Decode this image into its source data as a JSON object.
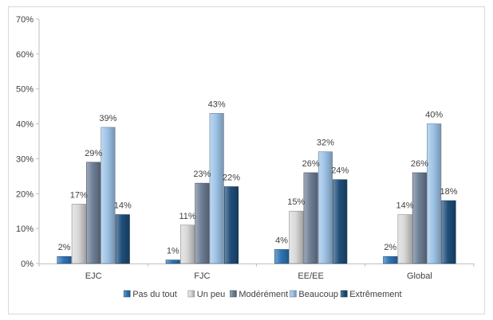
{
  "chart_data": {
    "type": "bar",
    "categories": [
      "EJC",
      "FJC",
      "EE/EE",
      "Global"
    ],
    "series": [
      {
        "name": "Pas du tout",
        "values": [
          2,
          1,
          4,
          2
        ],
        "labels": [
          "2%",
          "1%",
          "4%",
          "2%"
        ],
        "color": "#2e75b6"
      },
      {
        "name": "Un peu",
        "values": [
          17,
          11,
          15,
          14
        ],
        "labels": [
          "17%",
          "11%",
          "15%",
          "14%"
        ],
        "color": "#d9d9d9"
      },
      {
        "name": "Modérément",
        "values": [
          29,
          23,
          26,
          26
        ],
        "labels": [
          "29%",
          "23%",
          "26%",
          "26%"
        ],
        "color": "#6e7f96"
      },
      {
        "name": "Beaucoup",
        "values": [
          39,
          43,
          32,
          40
        ],
        "labels": [
          "39%",
          "43%",
          "32%",
          "40%"
        ],
        "color": "#9dc3e6"
      },
      {
        "name": "Extrêmement",
        "values": [
          14,
          22,
          24,
          18
        ],
        "labels": [
          "14%",
          "22%",
          "24%",
          "18%"
        ],
        "color": "#1f4e79"
      }
    ],
    "ylim": [
      0,
      70
    ],
    "yticks": [
      0,
      10,
      20,
      30,
      40,
      50,
      60,
      70
    ],
    "ytick_labels": [
      "0%",
      "10%",
      "20%",
      "30%",
      "40%",
      "50%",
      "60%",
      "70%"
    ],
    "title": "",
    "xlabel": "",
    "ylabel": "",
    "grid": false,
    "legend": "bottom"
  }
}
